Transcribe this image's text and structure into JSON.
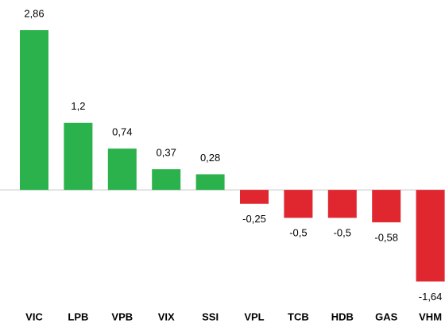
{
  "chart_data": {
    "type": "bar",
    "categories": [
      "VIC",
      "LPB",
      "VPB",
      "VIX",
      "SSI",
      "VPL",
      "TCB",
      "HDB",
      "GAS",
      "VHM"
    ],
    "values": [
      2.86,
      1.2,
      0.74,
      0.37,
      0.28,
      -0.25,
      -0.5,
      -0.5,
      -0.58,
      -1.64
    ],
    "value_labels": [
      "2,86",
      "1,2",
      "0,74",
      "0,37",
      "0,28",
      "-0,25",
      "-0,5",
      "-0,5",
      "-0,58",
      "-1,64"
    ],
    "color_positive": "#2bb24c",
    "color_negative": "#e0262f",
    "ylim": [
      -1.96,
      3.4
    ],
    "grid": false
  }
}
